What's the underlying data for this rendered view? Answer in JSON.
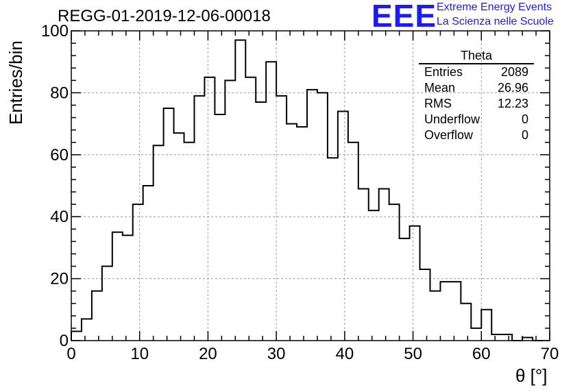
{
  "title": "REGG-01-2019-12-06-00018",
  "logo": {
    "mark": "EEE",
    "line1": "Extreme Energy Events",
    "line2": "La Scienza nelle Scuole",
    "color": "#1a1aff"
  },
  "stats_box": {
    "title": "Theta",
    "rows": [
      {
        "label": "Entries",
        "value": "2089"
      },
      {
        "label": "Mean",
        "value": "26.96"
      },
      {
        "label": "RMS",
        "value": "12.23"
      },
      {
        "label": "Underflow",
        "value": "0"
      },
      {
        "label": "Overflow",
        "value": "0"
      }
    ]
  },
  "chart_data": {
    "type": "histogram",
    "title": "REGG-01-2019-12-06-00018",
    "xlabel": "θ [°]",
    "ylabel": "Entries/bin",
    "xlim": [
      0,
      70
    ],
    "ylim": [
      0,
      100
    ],
    "bin_width": 1.5,
    "bin_start": 0,
    "values": [
      3,
      7,
      16,
      24,
      35,
      34,
      44,
      50,
      63,
      75,
      67,
      64,
      79,
      85,
      73,
      84,
      97,
      85,
      77,
      90,
      79,
      70,
      69,
      81,
      80,
      59,
      74,
      64,
      49,
      42,
      49,
      44,
      33,
      37,
      23,
      16,
      19,
      19,
      12,
      4,
      10,
      2,
      2,
      0,
      1,
      0
    ],
    "xticks": [
      0,
      10,
      20,
      30,
      40,
      50,
      60,
      70
    ],
    "yticks": [
      0,
      20,
      40,
      60,
      80,
      100
    ],
    "grid": true,
    "line_color": "#000000",
    "grid_color": "#999999"
  }
}
